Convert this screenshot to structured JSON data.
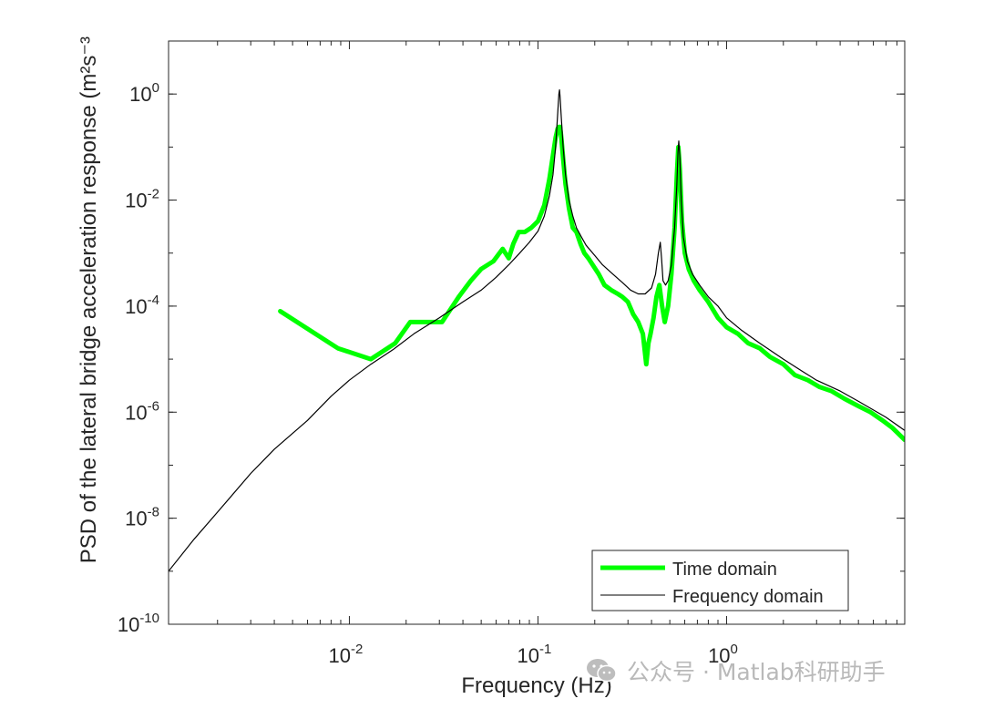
{
  "chart_data": {
    "type": "line",
    "xscale": "log",
    "yscale": "log",
    "xlim": [
      0.0011,
      8.8
    ],
    "ylim": [
      1e-10,
      10.0
    ],
    "xlabel": "Frequency (Hz)",
    "ylabel": "PSD of the lateral bridge acceleration response (m²s⁻³",
    "x_ticks": [
      {
        "base": "10",
        "exp": "-2",
        "value": 0.01
      },
      {
        "base": "10",
        "exp": "-1",
        "value": 0.1
      },
      {
        "base": "10",
        "exp": "0",
        "value": 1
      }
    ],
    "y_ticks": [
      {
        "base": "10",
        "exp": "0",
        "value": 1
      },
      {
        "base": "10",
        "exp": "-2",
        "value": 0.01
      },
      {
        "base": "10",
        "exp": "-4",
        "value": 0.0001
      },
      {
        "base": "10",
        "exp": "-6",
        "value": 1e-06
      },
      {
        "base": "10",
        "exp": "-8",
        "value": 1e-08
      },
      {
        "base": "10",
        "exp": "-10",
        "value": 1e-10
      }
    ],
    "legend_position": "bottom-right",
    "series": [
      {
        "name": "Time domain",
        "color": "#00ff00",
        "x": [
          0.0043,
          0.0087,
          0.013,
          0.0175,
          0.021,
          0.025,
          0.031,
          0.038,
          0.044,
          0.05,
          0.058,
          0.065,
          0.07,
          0.074,
          0.079,
          0.085,
          0.092,
          0.1,
          0.108,
          0.115,
          0.12,
          0.124,
          0.127,
          0.129,
          0.131,
          0.133,
          0.136,
          0.14,
          0.146,
          0.153,
          0.16,
          0.168,
          0.176,
          0.185,
          0.195,
          0.21,
          0.225,
          0.245,
          0.265,
          0.28,
          0.3,
          0.32,
          0.34,
          0.36,
          0.375,
          0.385,
          0.395,
          0.41,
          0.425,
          0.44,
          0.455,
          0.47,
          0.49,
          0.51,
          0.53,
          0.545,
          0.555,
          0.565,
          0.58,
          0.6,
          0.63,
          0.67,
          0.72,
          0.8,
          0.9,
          1.0,
          1.15,
          1.3,
          1.5,
          1.7,
          2.0,
          2.3,
          2.7,
          3.1,
          3.6,
          4.2,
          5.0,
          5.8,
          6.7,
          7.6,
          8.8
        ],
        "y": [
          8e-05,
          1.6e-05,
          1e-05,
          2e-05,
          5e-05,
          5e-05,
          5e-05,
          0.00015,
          0.0003,
          0.0005,
          0.0007,
          0.0012,
          0.0008,
          0.0015,
          0.0025,
          0.0025,
          0.003,
          0.004,
          0.008,
          0.025,
          0.07,
          0.15,
          0.22,
          0.24,
          0.24,
          0.15,
          0.06,
          0.02,
          0.007,
          0.003,
          0.0025,
          0.0015,
          0.001,
          0.0008,
          0.0006,
          0.0004,
          0.00025,
          0.0002,
          0.00017,
          0.00015,
          0.00012,
          7e-05,
          5e-05,
          3e-05,
          8e-06,
          2e-05,
          3e-05,
          6e-05,
          0.00015,
          0.00025,
          0.0001,
          5e-05,
          0.0001,
          0.0004,
          0.003,
          0.03,
          0.1,
          0.04,
          0.004,
          0.001,
          0.0005,
          0.0003,
          0.0002,
          0.00012,
          6e-05,
          4e-05,
          3e-05,
          2e-05,
          1.6e-05,
          1.1e-05,
          8e-06,
          5e-06,
          4e-06,
          3e-06,
          2.5e-06,
          1.8e-06,
          1.3e-06,
          1e-06,
          7e-07,
          5e-07,
          3e-07
        ]
      },
      {
        "name": "Frequency domain",
        "color": "#000000",
        "x": [
          0.0011,
          0.0015,
          0.002,
          0.003,
          0.004,
          0.006,
          0.008,
          0.01,
          0.013,
          0.017,
          0.022,
          0.03,
          0.04,
          0.05,
          0.06,
          0.07,
          0.08,
          0.09,
          0.1,
          0.108,
          0.115,
          0.12,
          0.124,
          0.127,
          0.129,
          0.13,
          0.131,
          0.133,
          0.136,
          0.14,
          0.146,
          0.153,
          0.16,
          0.17,
          0.18,
          0.2,
          0.22,
          0.25,
          0.28,
          0.31,
          0.34,
          0.37,
          0.4,
          0.42,
          0.435,
          0.445,
          0.452,
          0.46,
          0.475,
          0.49,
          0.51,
          0.53,
          0.545,
          0.552,
          0.558,
          0.565,
          0.575,
          0.59,
          0.62,
          0.66,
          0.72,
          0.8,
          0.9,
          1.0,
          1.2,
          1.5,
          2.0,
          2.5,
          3.0,
          4.0,
          5.0,
          6.0,
          7.0,
          8.8
        ],
        "y": [
          1e-09,
          4e-09,
          1.3e-08,
          7e-08,
          2e-07,
          7e-07,
          2e-06,
          4e-06,
          8e-06,
          1.5e-05,
          3e-05,
          6e-05,
          0.00012,
          0.0002,
          0.00035,
          0.0006,
          0.001,
          0.0016,
          0.0026,
          0.005,
          0.012,
          0.03,
          0.1,
          0.4,
          1.0,
          1.2,
          0.9,
          0.35,
          0.1,
          0.03,
          0.01,
          0.005,
          0.003,
          0.002,
          0.0014,
          0.0009,
          0.0006,
          0.0004,
          0.00028,
          0.0002,
          0.00017,
          0.00017,
          0.00022,
          0.0004,
          0.001,
          0.0016,
          0.0008,
          0.0003,
          0.00025,
          0.0003,
          0.0006,
          0.003,
          0.02,
          0.08,
          0.13,
          0.07,
          0.01,
          0.002,
          0.0007,
          0.0004,
          0.00025,
          0.00015,
          0.0001,
          6e-05,
          3.5e-05,
          2e-05,
          1e-05,
          6e-06,
          4e-06,
          2.5e-06,
          1.6e-06,
          1.1e-06,
          8e-07,
          4.5e-07
        ]
      }
    ]
  },
  "legend": {
    "time_domain": "Time domain",
    "frequency_domain": "Frequency domain"
  },
  "watermark": {
    "text": "公众号 · Matlab科研助手",
    "icon": "wechat-icon"
  },
  "colors": {
    "time_domain": "#00ff00",
    "frequency_domain": "#000000",
    "axis": "#262626",
    "watermark": "#b9b9b9"
  }
}
